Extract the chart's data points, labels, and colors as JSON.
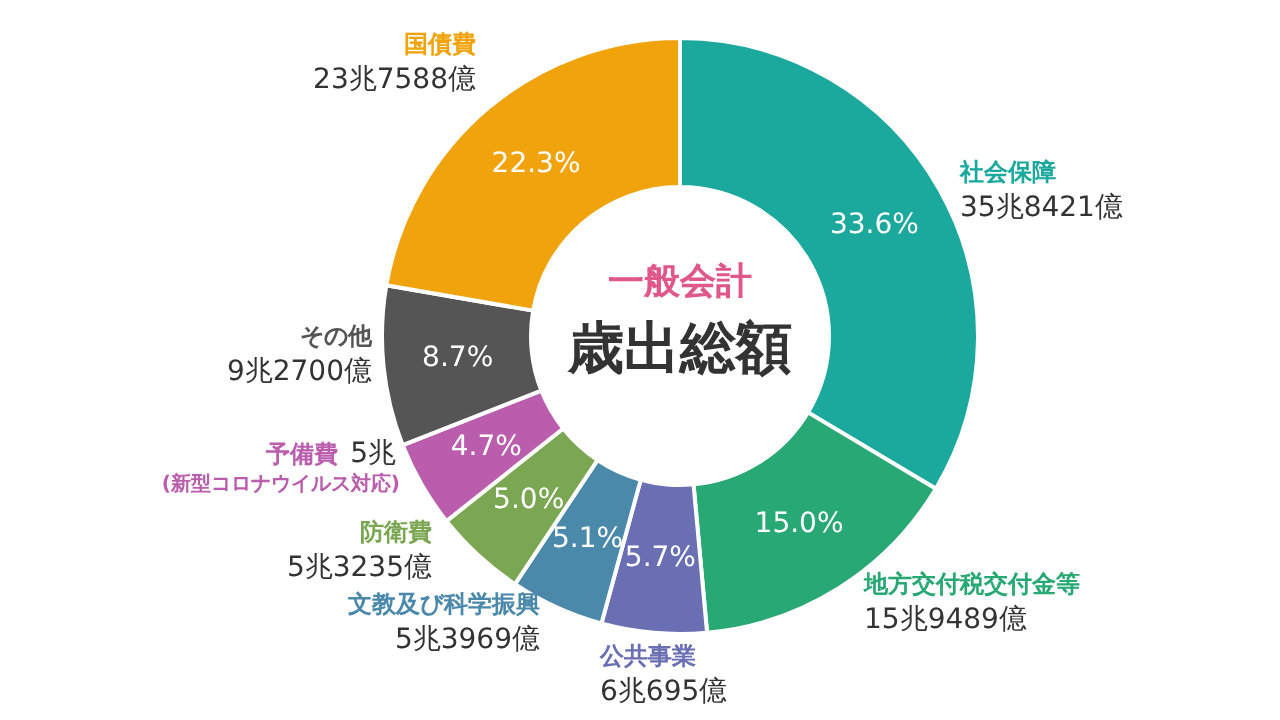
{
  "chart_data": {
    "type": "donut",
    "title": "歳出総額",
    "subtitle": "一般会計",
    "categories": [
      "社会保障",
      "地方交付税交付金等",
      "公共事業",
      "文教及び科学振興",
      "防衛費",
      "予備費",
      "その他",
      "国債費"
    ],
    "values": [
      33.6,
      15.0,
      5.7,
      5.1,
      5.0,
      4.7,
      8.7,
      22.3
    ],
    "colors": [
      "#1ba89d",
      "#27a874",
      "#6a6fb3",
      "#4b89ab",
      "#7ba652",
      "#ba5dad",
      "#555555",
      "#f1a30c"
    ],
    "value_labels": [
      "33.6%",
      "15.0%",
      "5.7%",
      "5.1%",
      "5.0%",
      "4.7%",
      "8.7%",
      "22.3%"
    ],
    "annotations": [
      "35兆8421億",
      "15兆9489億",
      "6兆695億",
      "5兆3969億",
      "5兆3235億",
      "5兆",
      "9兆2700億",
      "23兆7588億",
      "(新型コロナウイルス対応)"
    ],
    "legend": false
  }
}
